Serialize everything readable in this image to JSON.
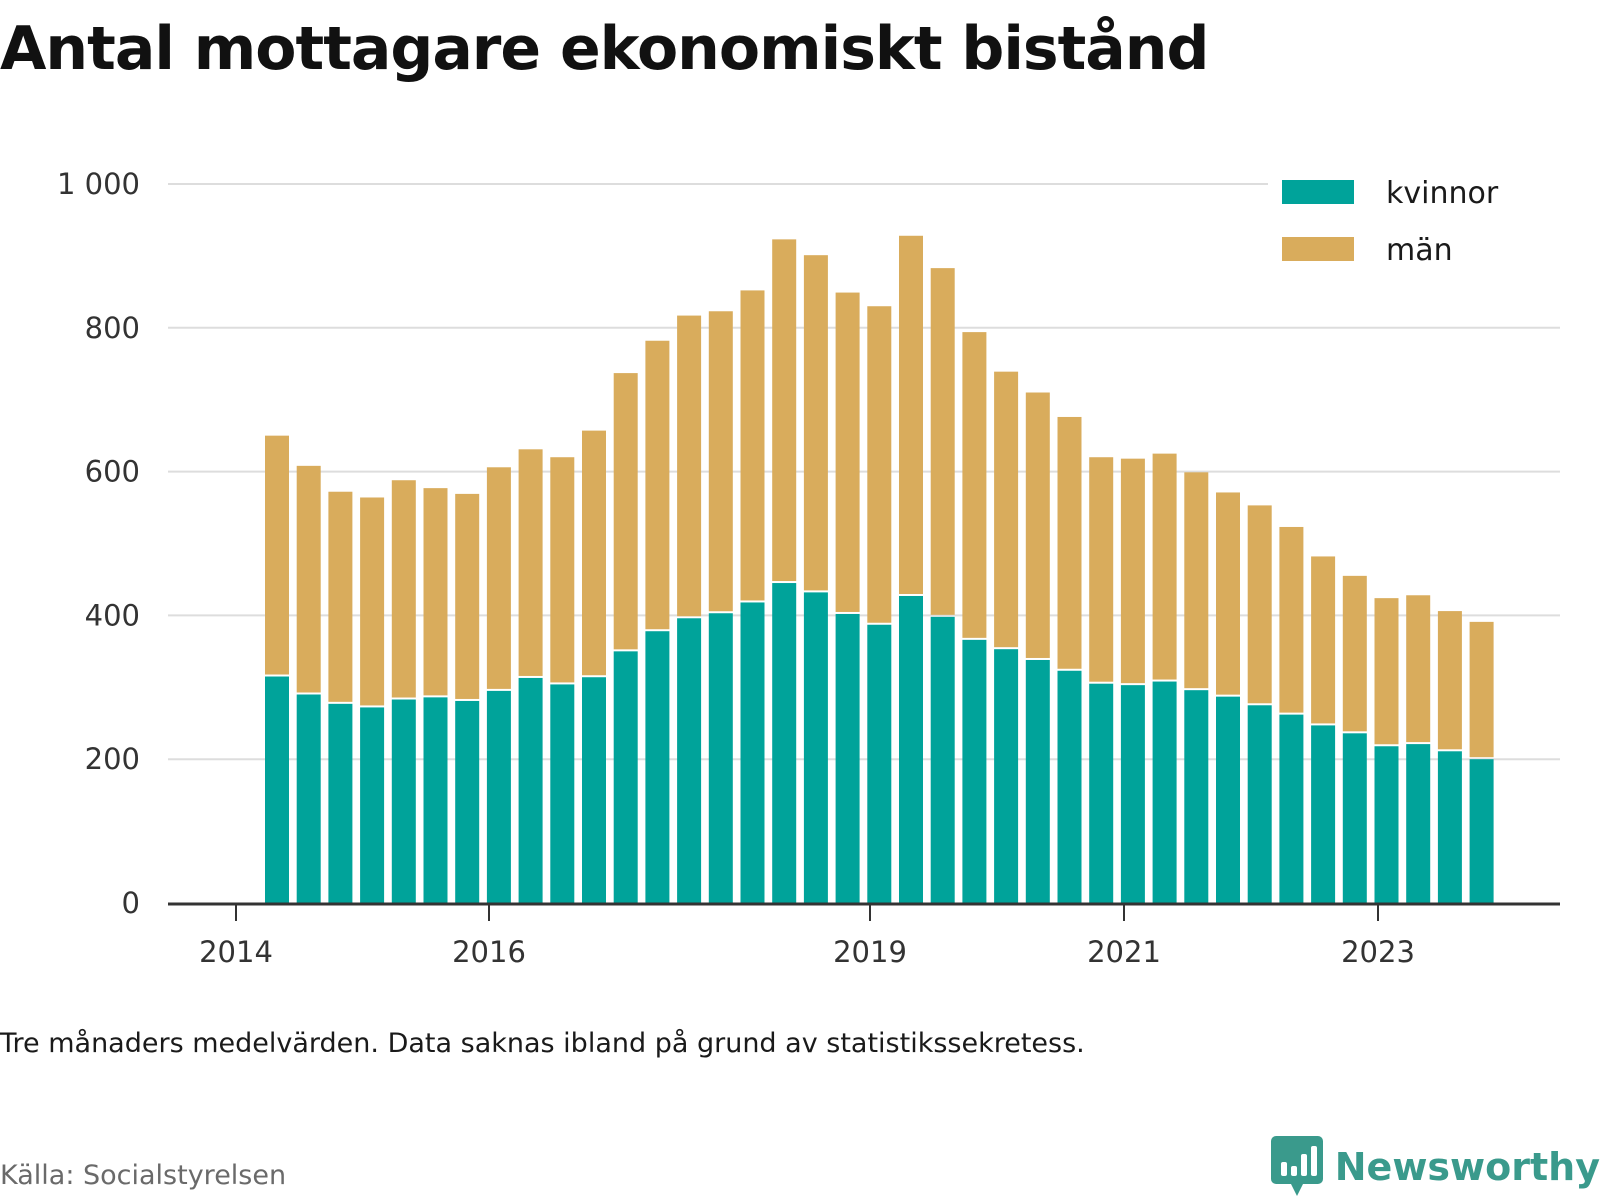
{
  "title": "Antal mottagare ekonomiskt bistånd",
  "note": "Tre månaders medelvärden. Data saknas ibland på grund av statistikssekretess.",
  "source": "Källa: Socialstyrelsen",
  "brand": {
    "name": "Newsworthy",
    "icon": "bar-chart-bubble-icon",
    "color": "#3a9a8c"
  },
  "colors": {
    "kvinnor": "#00a39a",
    "man": "#d9ac5c",
    "grid": "#dddddd",
    "axis": "#333333"
  },
  "chart_data": {
    "type": "bar",
    "stacked": true,
    "ylim": [
      0,
      1000
    ],
    "yticks": [
      0,
      200,
      400,
      600,
      800,
      1000
    ],
    "ytick_labels": [
      "0",
      "200",
      "400",
      "600",
      "800",
      "1 000"
    ],
    "xtick_labels": [
      "2014",
      "2016",
      "2019",
      "2021",
      "2023"
    ],
    "grid": true,
    "legend_position": "top-right",
    "categories": [
      "2014-Q2",
      "2014-Q3",
      "2014-Q4",
      "2015-Q1",
      "2015-Q2",
      "2015-Q3",
      "2015-Q4",
      "2016-Q1",
      "2016-Q2",
      "2016-Q3",
      "2016-Q4",
      "2017-Q1",
      "2017-Q2",
      "2017-Q3",
      "2017-Q4",
      "2018-Q1",
      "2018-Q2",
      "2018-Q3",
      "2018-Q4",
      "2019-Q1",
      "2019-Q2",
      "2019-Q3",
      "2019-Q4",
      "2020-Q1",
      "2020-Q2",
      "2020-Q3",
      "2020-Q4",
      "2021-Q1",
      "2021-Q2",
      "2021-Q3",
      "2021-Q4",
      "2022-Q1",
      "2022-Q2",
      "2022-Q3",
      "2022-Q4",
      "2023-Q1",
      "2023-Q2",
      "2023-Q3",
      "2023-Q4"
    ],
    "series": [
      {
        "name": "kvinnor",
        "values": [
          315,
          290,
          277,
          272,
          283,
          286,
          281,
          295,
          313,
          304,
          314,
          350,
          378,
          396,
          403,
          418,
          445,
          432,
          402,
          387,
          427,
          398,
          366,
          353,
          338,
          323,
          305,
          303,
          308,
          296,
          287,
          275,
          262,
          247,
          236,
          218,
          221,
          211,
          200
        ]
      },
      {
        "name": "män",
        "values": [
          335,
          318,
          295,
          292,
          305,
          291,
          288,
          311,
          318,
          316,
          343,
          387,
          404,
          421,
          420,
          434,
          478,
          469,
          447,
          443,
          501,
          485,
          428,
          386,
          372,
          353,
          315,
          315,
          317,
          303,
          284,
          278,
          261,
          235,
          219,
          206,
          207,
          195,
          191
        ]
      }
    ]
  }
}
